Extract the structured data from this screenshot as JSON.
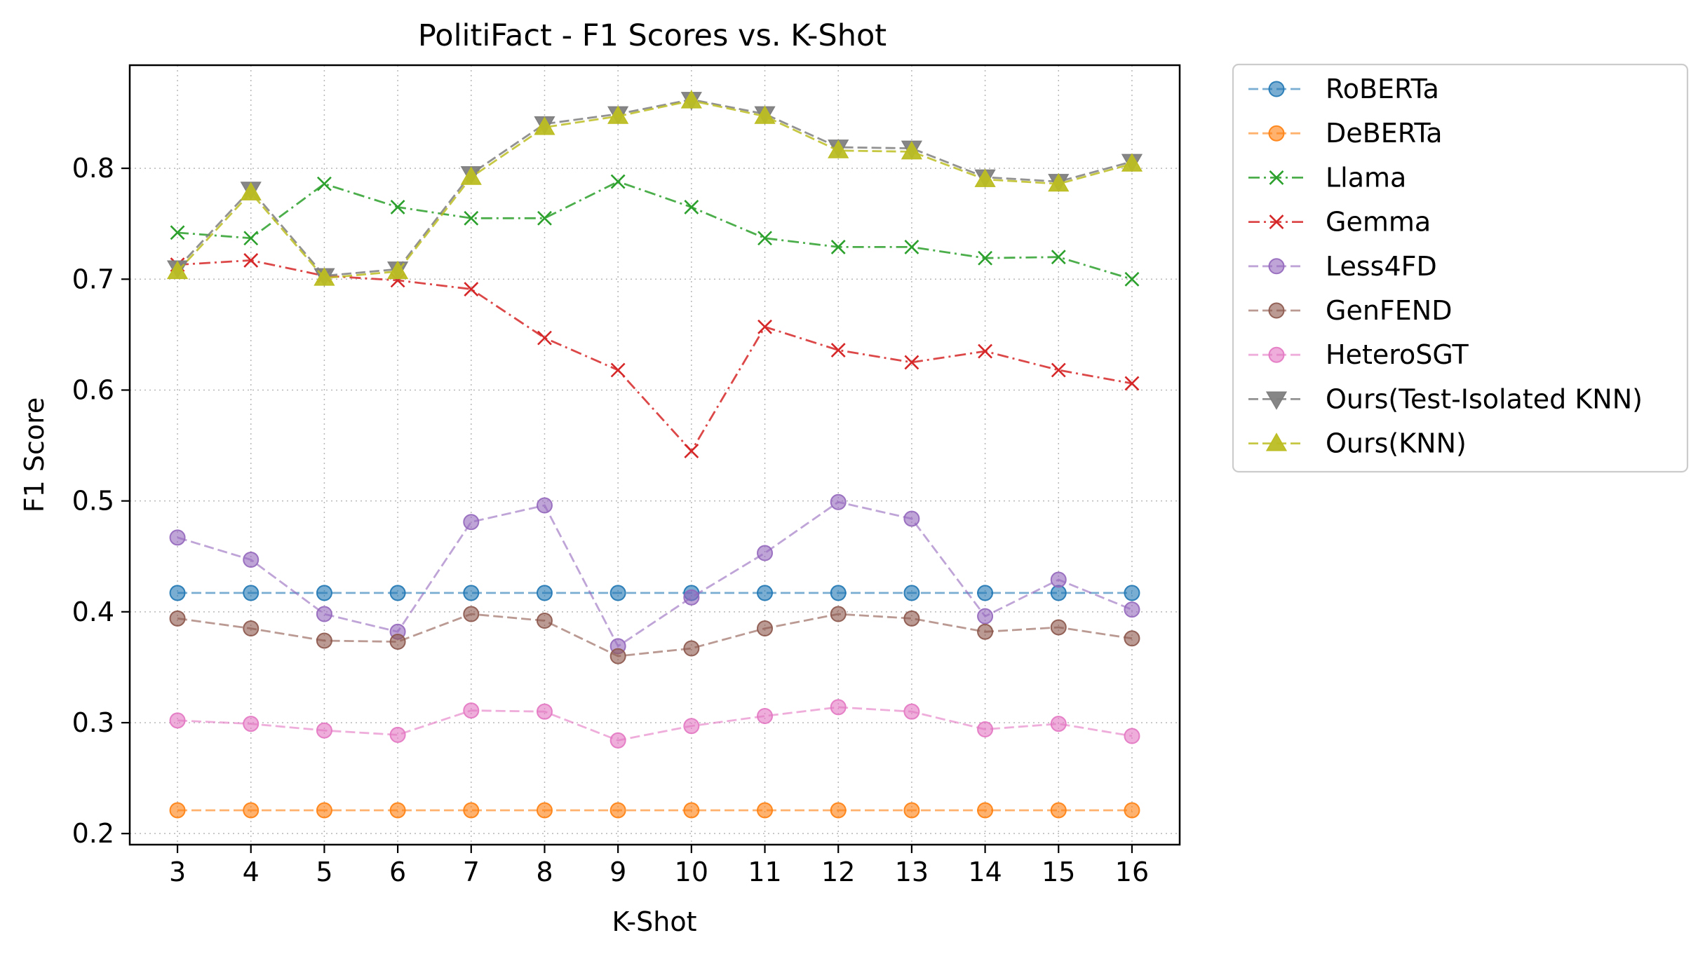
{
  "chart_data": {
    "type": "line",
    "title": "PolitiFact - F1 Scores vs. K-Shot",
    "xlabel": "K-Shot",
    "ylabel": "F1 Score",
    "x": [
      3,
      4,
      5,
      6,
      7,
      8,
      9,
      10,
      11,
      12,
      13,
      14,
      15,
      16
    ],
    "xlim": [
      2.35,
      16.65
    ],
    "ylim": [
      0.19,
      0.893
    ],
    "yticks": [
      0.2,
      0.3,
      0.4,
      0.5,
      0.6,
      0.7,
      0.8
    ],
    "ytick_labels": [
      "0.2",
      "0.3",
      "0.4",
      "0.5",
      "0.6",
      "0.7",
      "0.8"
    ],
    "grid": true,
    "legend_position": "outside-right-top",
    "series": [
      {
        "name": "RoBERTa",
        "color": "#1f77b4",
        "marker": "circle",
        "linestyle": "dashed",
        "values": [
          0.417,
          0.417,
          0.417,
          0.417,
          0.417,
          0.417,
          0.417,
          0.417,
          0.417,
          0.417,
          0.417,
          0.417,
          0.417,
          0.417
        ]
      },
      {
        "name": "DeBERTa",
        "color": "#ff7f0e",
        "marker": "circle",
        "linestyle": "dashed",
        "values": [
          0.221,
          0.221,
          0.221,
          0.221,
          0.221,
          0.221,
          0.221,
          0.221,
          0.221,
          0.221,
          0.221,
          0.221,
          0.221,
          0.221
        ]
      },
      {
        "name": "Llama",
        "color": "#2ca02c",
        "marker": "x",
        "linestyle": "dashdot",
        "values": [
          0.742,
          0.737,
          0.786,
          0.765,
          0.755,
          0.755,
          0.788,
          0.765,
          0.737,
          0.729,
          0.729,
          0.719,
          0.72,
          0.7
        ]
      },
      {
        "name": "Gemma",
        "color": "#d62728",
        "marker": "x",
        "linestyle": "dashdot",
        "values": [
          0.713,
          0.717,
          0.703,
          0.699,
          0.691,
          0.647,
          0.618,
          0.545,
          0.657,
          0.636,
          0.625,
          0.635,
          0.618,
          0.606
        ]
      },
      {
        "name": "Less4FD",
        "color": "#9467bd",
        "marker": "circle",
        "linestyle": "dashed",
        "values": [
          0.467,
          0.447,
          0.398,
          0.382,
          0.481,
          0.496,
          0.369,
          0.413,
          0.453,
          0.499,
          0.484,
          0.396,
          0.429,
          0.402
        ]
      },
      {
        "name": "GenFEND",
        "color": "#8c564b",
        "marker": "circle",
        "linestyle": "dashed",
        "values": [
          0.394,
          0.385,
          0.374,
          0.373,
          0.398,
          0.392,
          0.36,
          0.367,
          0.385,
          0.398,
          0.394,
          0.382,
          0.386,
          0.376
        ]
      },
      {
        "name": "HeteroSGT",
        "color": "#e377c2",
        "marker": "circle",
        "linestyle": "dashed",
        "values": [
          0.302,
          0.299,
          0.293,
          0.289,
          0.311,
          0.31,
          0.284,
          0.297,
          0.306,
          0.314,
          0.31,
          0.294,
          0.299,
          0.288
        ]
      },
      {
        "name": "Ours(Test-Isolated KNN)",
        "color": "#7f7f7f",
        "marker": "triangle-down",
        "linestyle": "dashed",
        "values": [
          0.71,
          0.781,
          0.703,
          0.709,
          0.795,
          0.84,
          0.849,
          0.862,
          0.849,
          0.819,
          0.818,
          0.792,
          0.788,
          0.806
        ]
      },
      {
        "name": "Ours(KNN)",
        "color": "#bcbd22",
        "marker": "triangle-up",
        "linestyle": "dashed",
        "values": [
          0.707,
          0.778,
          0.701,
          0.707,
          0.792,
          0.837,
          0.847,
          0.861,
          0.847,
          0.816,
          0.815,
          0.79,
          0.786,
          0.804
        ]
      }
    ]
  }
}
